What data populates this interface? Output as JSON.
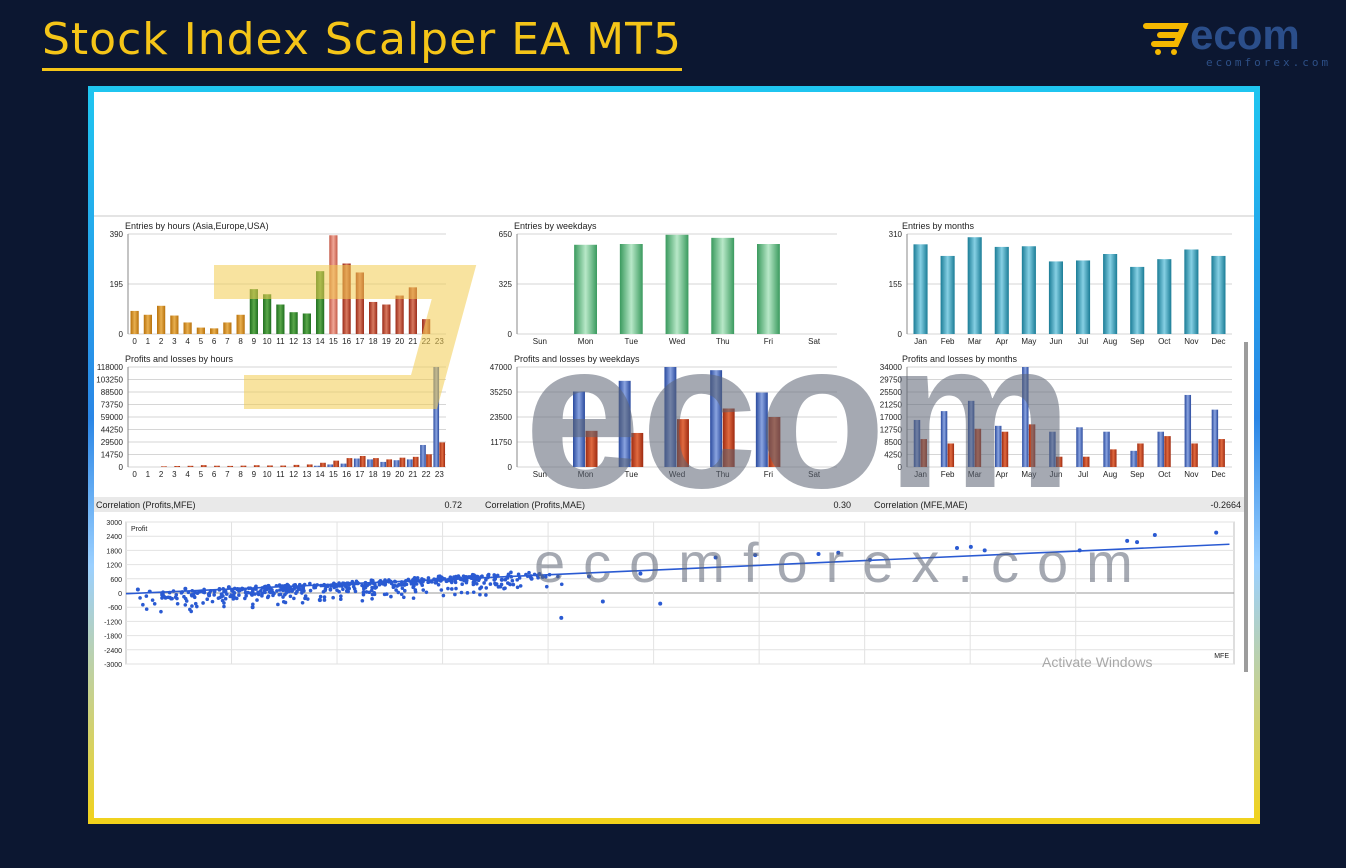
{
  "page": {
    "title": "Stock Index Scalper EA MT5",
    "logo_text": "ecomforex.com",
    "watermark": "Activate Windows"
  },
  "colors": {
    "background": "#0c1731",
    "title": "#f5c518"
  },
  "chart_data": [
    {
      "id": "hours",
      "type": "bar",
      "title": "Entries by hours (Asia,Europe,USA)",
      "ylim": [
        0,
        390
      ],
      "yticks": [
        "390",
        "195",
        "0"
      ],
      "categories": [
        "0",
        "1",
        "2",
        "3",
        "4",
        "5",
        "6",
        "7",
        "8",
        "9",
        "10",
        "11",
        "12",
        "13",
        "14",
        "15",
        "16",
        "17",
        "18",
        "19",
        "20",
        "21",
        "22",
        "23"
      ],
      "values": [
        90,
        75,
        110,
        72,
        45,
        25,
        22,
        45,
        75,
        175,
        155,
        115,
        85,
        80,
        245,
        385,
        275,
        240,
        125,
        115,
        150,
        182,
        58,
        0
      ]
    },
    {
      "id": "weekdays",
      "type": "bar",
      "title": "Entries by weekdays",
      "ylim": [
        0,
        650
      ],
      "yticks": [
        "650",
        "325",
        "0"
      ],
      "categories": [
        "Sun",
        "Mon",
        "Tue",
        "Wed",
        "Thu",
        "Fri",
        "Sat"
      ],
      "values": [
        0,
        580,
        585,
        645,
        625,
        585,
        0
      ]
    },
    {
      "id": "months",
      "type": "bar",
      "title": "Entries by months",
      "ylim": [
        0,
        310
      ],
      "yticks": [
        "310",
        "155",
        "0"
      ],
      "categories": [
        "Jan",
        "Feb",
        "Mar",
        "Apr",
        "May",
        "Jun",
        "Jul",
        "Aug",
        "Sep",
        "Oct",
        "Nov",
        "Dec"
      ],
      "values": [
        278,
        242,
        300,
        270,
        272,
        225,
        228,
        248,
        208,
        232,
        262,
        242
      ]
    },
    {
      "id": "pl_hours",
      "type": "bar",
      "title": "Profits and losses by hours",
      "ylim": [
        0,
        118000
      ],
      "yticks": [
        "118000",
        "103250",
        "88500",
        "73750",
        "59000",
        "44250",
        "29500",
        "14750",
        "0"
      ],
      "categories": [
        "0",
        "1",
        "2",
        "3",
        "4",
        "5",
        "6",
        "7",
        "8",
        "9",
        "10",
        "11",
        "12",
        "13",
        "14",
        "15",
        "16",
        "17",
        "18",
        "19",
        "20",
        "21",
        "22",
        "23"
      ],
      "series": [
        {
          "name": "Profits",
          "values": [
            0,
            0,
            0,
            0,
            0,
            0,
            0,
            0,
            0,
            0,
            0,
            0,
            0,
            0,
            1500,
            3000,
            4000,
            10000,
            9000,
            6000,
            8000,
            9000,
            26000,
            118000
          ]
        },
        {
          "name": "Losses",
          "values": [
            0,
            0,
            800,
            1200,
            1400,
            2200,
            1500,
            1300,
            1600,
            2100,
            1800,
            1700,
            2500,
            3000,
            5000,
            7500,
            10500,
            13000,
            10500,
            9000,
            11000,
            12000,
            15000,
            29000
          ]
        }
      ]
    },
    {
      "id": "pl_weekdays",
      "type": "bar",
      "title": "Profits and losses by weekdays",
      "ylim": [
        0,
        47000
      ],
      "yticks": [
        "47000",
        "35250",
        "23500",
        "11750",
        "0"
      ],
      "categories": [
        "Sun",
        "Mon",
        "Tue",
        "Wed",
        "Thu",
        "Fri",
        "Sat"
      ],
      "series": [
        {
          "name": "Profits",
          "values": [
            0,
            35500,
            40500,
            47000,
            45500,
            35000,
            0
          ]
        },
        {
          "name": "Losses",
          "values": [
            0,
            17000,
            16000,
            22500,
            27500,
            23500,
            0
          ]
        }
      ]
    },
    {
      "id": "pl_months",
      "type": "bar",
      "title": "Profits and losses by months",
      "ylim": [
        0,
        34000
      ],
      "yticks": [
        "34000",
        "29750",
        "25500",
        "21250",
        "17000",
        "12750",
        "8500",
        "4250",
        "0"
      ],
      "categories": [
        "Jan",
        "Feb",
        "Mar",
        "Apr",
        "May",
        "Jun",
        "Jul",
        "Aug",
        "Sep",
        "Oct",
        "Nov",
        "Dec"
      ],
      "series": [
        {
          "name": "Profits",
          "values": [
            16000,
            19000,
            22500,
            14000,
            34000,
            12000,
            13500,
            12000,
            5500,
            12000,
            24500,
            19500
          ]
        },
        {
          "name": "Losses",
          "values": [
            9500,
            8000,
            13000,
            12000,
            14500,
            3500,
            3500,
            6000,
            8000,
            10500,
            8000,
            9500
          ]
        }
      ]
    },
    {
      "id": "scatter",
      "type": "scatter",
      "ylabel": "Profit",
      "xlabel": "MFE",
      "ylim": [
        -3000,
        3000
      ],
      "yticks": [
        "3000",
        "2400",
        "1800",
        "1200",
        "600",
        "0",
        "-600",
        "-1200",
        "-1800",
        "-2400",
        "-3000"
      ],
      "trend": [
        [
          0,
          -30
        ],
        [
          3900,
          2060
        ]
      ],
      "points": [
        [
          60,
          150
        ],
        [
          120,
          60
        ],
        [
          200,
          -200
        ],
        [
          300,
          180
        ],
        [
          420,
          -100
        ],
        [
          520,
          250
        ],
        [
          640,
          -600
        ],
        [
          720,
          300
        ],
        [
          850,
          320
        ],
        [
          980,
          -300
        ],
        [
          1100,
          400
        ],
        [
          1250,
          420
        ],
        [
          1380,
          350
        ],
        [
          1500,
          480
        ],
        [
          1620,
          500
        ],
        [
          1760,
          520
        ],
        [
          1900,
          560
        ],
        [
          2050,
          600
        ],
        [
          2200,
          -1050
        ],
        [
          2340,
          700
        ],
        [
          2410,
          -360
        ],
        [
          2600,
          820
        ],
        [
          2700,
          -450
        ],
        [
          2980,
          1500
        ],
        [
          3180,
          1600
        ],
        [
          3500,
          1650
        ],
        [
          3600,
          1700
        ],
        [
          3760,
          1400
        ],
        [
          4200,
          1900
        ],
        [
          4270,
          1950
        ],
        [
          4340,
          1800
        ],
        [
          4820,
          1800
        ],
        [
          5060,
          2200
        ],
        [
          5110,
          2150
        ],
        [
          5200,
          2450
        ],
        [
          5510,
          2550
        ]
      ]
    },
    {
      "id": "correlations",
      "type": "table",
      "rows": [
        {
          "label": "Correlation (Profits,MFE)",
          "value": "0.72"
        },
        {
          "label": "Correlation (Profits,MAE)",
          "value": "0.30"
        },
        {
          "label": "Correlation (MFE,MAE)",
          "value": "-0.2664"
        }
      ]
    }
  ]
}
